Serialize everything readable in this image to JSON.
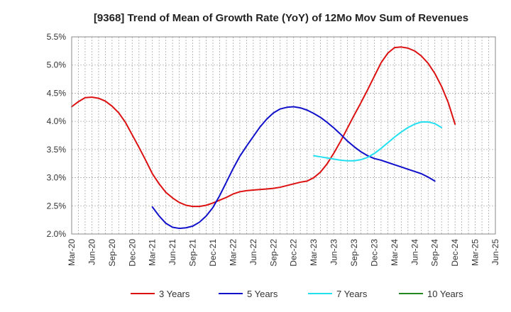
{
  "chart_data": {
    "type": "line",
    "title": "[9368]  Trend of Mean of Growth Rate (YoY) of 12Mo Mov Sum of Revenues",
    "xlabel": "",
    "ylabel": "",
    "ylim": [
      2.0,
      5.5
    ],
    "grid": true,
    "legend_position": "bottom",
    "x_ticks": [
      "Mar-20",
      "Jun-20",
      "Sep-20",
      "Dec-20",
      "Mar-21",
      "Jun-21",
      "Sep-21",
      "Dec-21",
      "Mar-22",
      "Jun-22",
      "Sep-22",
      "Dec-22",
      "Mar-23",
      "Jun-23",
      "Sep-23",
      "Dec-23",
      "Mar-24",
      "Jun-24",
      "Sep-24",
      "Dec-24",
      "Mar-25",
      "Jun-25"
    ],
    "y_ticks": [
      "2.0%",
      "2.5%",
      "3.0%",
      "3.5%",
      "4.0%",
      "4.5%",
      "5.0%",
      "5.5%"
    ],
    "y_tick_values": [
      2.0,
      2.5,
      3.0,
      3.5,
      4.0,
      4.5,
      5.0,
      5.5
    ],
    "series": [
      {
        "name": "3 Years",
        "color": "#dd1111",
        "start_index": 0,
        "values": [
          4.26,
          4.35,
          4.42,
          4.43,
          4.41,
          4.36,
          4.27,
          4.15,
          3.98,
          3.76,
          3.54,
          3.31,
          3.07,
          2.89,
          2.74,
          2.64,
          2.56,
          2.51,
          2.49,
          2.49,
          2.51,
          2.55,
          2.6,
          2.65,
          2.71,
          2.75,
          2.77,
          2.78,
          2.79,
          2.8,
          2.81,
          2.83,
          2.86,
          2.89,
          2.92,
          2.94,
          3.0,
          3.1,
          3.25,
          3.44,
          3.65,
          3.88,
          4.11,
          4.33,
          4.56,
          4.8,
          5.04,
          5.21,
          5.31,
          5.32,
          5.3,
          5.25,
          5.16,
          5.03,
          4.85,
          4.62,
          4.33,
          3.95
        ]
      },
      {
        "name": "5 Years",
        "color": "#1111cc",
        "start_index": 12,
        "values": [
          2.48,
          2.32,
          2.19,
          2.12,
          2.1,
          2.11,
          2.14,
          2.21,
          2.32,
          2.47,
          2.68,
          2.92,
          3.16,
          3.38,
          3.56,
          3.73,
          3.9,
          4.04,
          4.15,
          4.22,
          4.25,
          4.26,
          4.24,
          4.2,
          4.14,
          4.07,
          3.98,
          3.88,
          3.77,
          3.65,
          3.55,
          3.46,
          3.39,
          3.34,
          3.31,
          3.27,
          3.23,
          3.19,
          3.15,
          3.11,
          3.07,
          3.01,
          2.94
        ]
      },
      {
        "name": "7 Years",
        "color": "#22e0f0",
        "start_index": 36,
        "values": [
          3.39,
          3.37,
          3.35,
          3.33,
          3.31,
          3.3,
          3.3,
          3.32,
          3.36,
          3.43,
          3.52,
          3.62,
          3.72,
          3.81,
          3.89,
          3.95,
          3.99,
          3.99,
          3.96,
          3.89
        ]
      },
      {
        "name": "10 Years",
        "color": "#228822",
        "start_index": 0,
        "values": []
      }
    ]
  }
}
